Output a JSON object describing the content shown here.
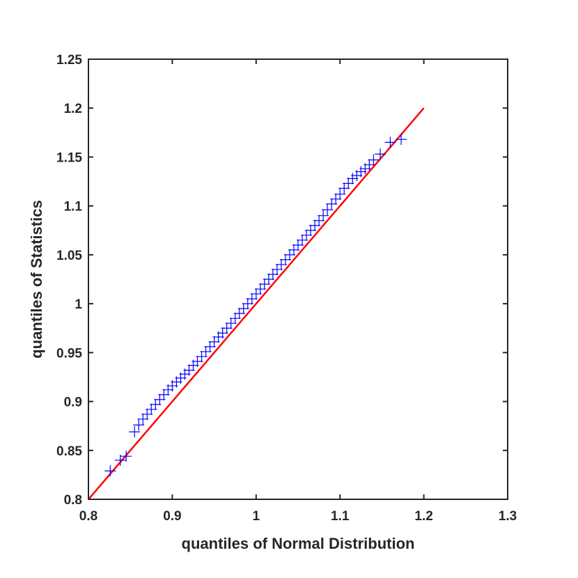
{
  "chart_data": {
    "type": "scatter",
    "title": "",
    "xlabel": "quantiles of Normal Distribution",
    "ylabel": "quantiles of Statistics",
    "xlim": [
      0.8,
      1.3
    ],
    "ylim": [
      0.8,
      1.25
    ],
    "xticks": [
      "0.8",
      "0.9",
      "1",
      "1.1",
      "1.2",
      "1.3"
    ],
    "yticks": [
      "0.8",
      "0.85",
      "0.9",
      "0.95",
      "1",
      "1.05",
      "1.1",
      "1.15",
      "1.2",
      "1.25"
    ],
    "grid": false,
    "marker": "+",
    "series": [
      {
        "role": "sample quantiles",
        "color": "#0000ff",
        "x": [
          0.826,
          0.838,
          0.845,
          0.855,
          0.86,
          0.865,
          0.87,
          0.875,
          0.88,
          0.885,
          0.89,
          0.895,
          0.9,
          0.905,
          0.91,
          0.915,
          0.92,
          0.925,
          0.93,
          0.935,
          0.94,
          0.945,
          0.95,
          0.955,
          0.96,
          0.965,
          0.97,
          0.975,
          0.98,
          0.985,
          0.99,
          0.995,
          1.0,
          1.005,
          1.01,
          1.015,
          1.02,
          1.025,
          1.03,
          1.035,
          1.04,
          1.045,
          1.05,
          1.055,
          1.06,
          1.065,
          1.07,
          1.075,
          1.08,
          1.085,
          1.09,
          1.095,
          1.1,
          1.105,
          1.11,
          1.115,
          1.12,
          1.125,
          1.13,
          1.135,
          1.14,
          1.148,
          1.16,
          1.173
        ],
        "y": [
          0.829,
          0.84,
          0.844,
          0.869,
          0.876,
          0.882,
          0.887,
          0.892,
          0.897,
          0.902,
          0.907,
          0.912,
          0.916,
          0.92,
          0.924,
          0.928,
          0.932,
          0.937,
          0.941,
          0.946,
          0.951,
          0.956,
          0.961,
          0.966,
          0.97,
          0.975,
          0.98,
          0.985,
          0.99,
          0.995,
          1.0,
          1.005,
          1.01,
          1.015,
          1.02,
          1.025,
          1.03,
          1.035,
          1.04,
          1.045,
          1.05,
          1.055,
          1.06,
          1.065,
          1.07,
          1.075,
          1.08,
          1.085,
          1.09,
          1.096,
          1.102,
          1.107,
          1.112,
          1.118,
          1.123,
          1.128,
          1.131,
          1.135,
          1.138,
          1.142,
          1.147,
          1.153,
          1.165,
          1.168
        ]
      },
      {
        "role": "reference line",
        "color": "#ff0000",
        "x": [
          0.8,
          1.2
        ],
        "y": [
          0.8,
          1.2
        ]
      }
    ]
  }
}
